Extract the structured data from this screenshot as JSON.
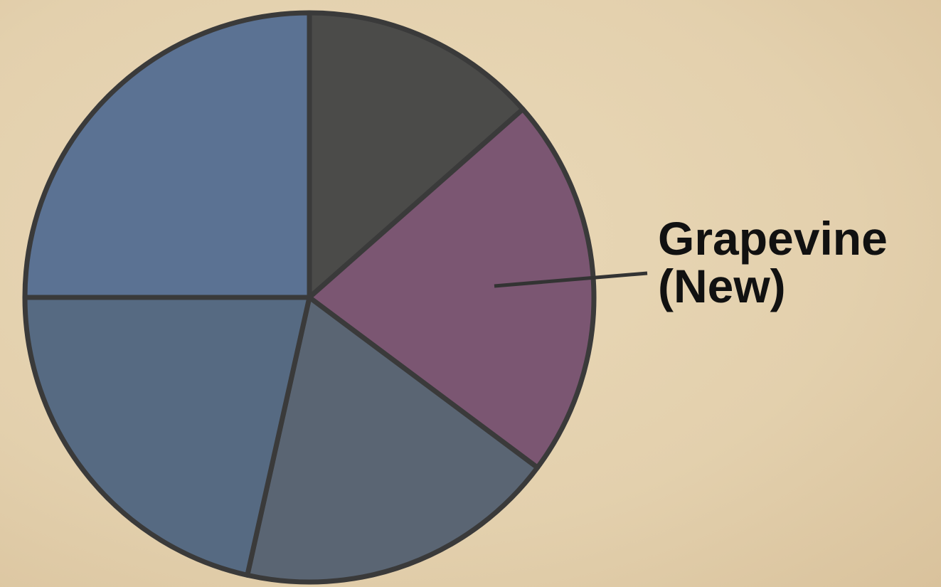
{
  "chart_data": {
    "type": "pie",
    "categories": [
      null,
      "Grapevine (New)",
      null,
      null,
      null
    ],
    "values": [
      13.5,
      21.7,
      18.3,
      21.5,
      25
    ],
    "colors": [
      "#4b4b49",
      "#7b5672",
      "#5a6573",
      "#566a82",
      "#5b7293"
    ]
  }
}
